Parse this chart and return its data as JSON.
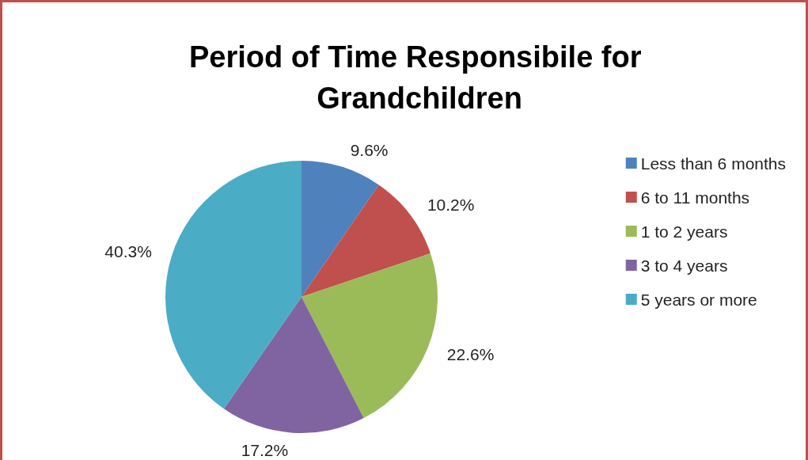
{
  "chart_data": {
    "type": "pie",
    "title": "Period of Time Responsibile for Grandchildren",
    "categories": [
      "Less than 6 months",
      "6 to 11 months",
      "1 to 2 years",
      "3 to 4 years",
      "5 years or more"
    ],
    "values": [
      9.6,
      10.2,
      22.6,
      17.2,
      40.3
    ],
    "value_labels": [
      "9.6%",
      "10.2%",
      "22.6%",
      "17.2%",
      "40.3%"
    ],
    "colors": [
      "#4f81bd",
      "#c0504d",
      "#9bbb59",
      "#8064a2",
      "#4bacc6"
    ],
    "legend": "right"
  }
}
